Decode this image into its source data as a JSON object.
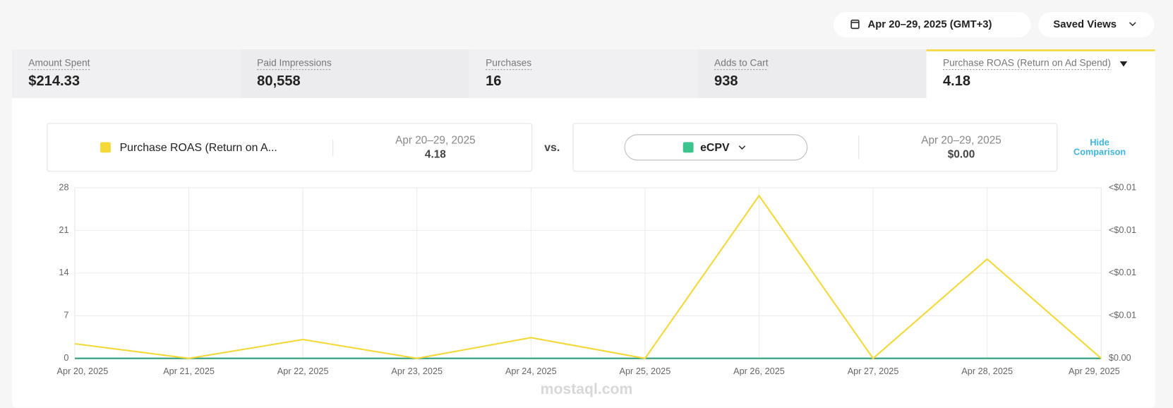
{
  "header": {
    "date_range": "Apr 20–29, 2025 (GMT+3)",
    "saved_views": "Saved Views"
  },
  "metrics": [
    {
      "label": "Amount Spent",
      "value": "$214.33"
    },
    {
      "label": "Paid Impressions",
      "value": "80,558"
    },
    {
      "label": "Purchases",
      "value": "16"
    },
    {
      "label": "Adds to Cart",
      "value": "938"
    },
    {
      "label": "Purchase ROAS (Return on Ad Spend)",
      "value": "4.18"
    }
  ],
  "comparison": {
    "primary": {
      "label": "Purchase ROAS (Return on A...",
      "date": "Apr 20–29, 2025",
      "value": "4.18"
    },
    "vs": "vs.",
    "secondary": {
      "label": "eCPV",
      "date": "Apr 20–29, 2025",
      "value": "$0.00"
    },
    "hide": [
      "Hide",
      "Comparison"
    ]
  },
  "chart_data": {
    "type": "line",
    "categories": [
      "Apr 20, 2025",
      "Apr 21, 2025",
      "Apr 22, 2025",
      "Apr 23, 2025",
      "Apr 24, 2025",
      "Apr 25, 2025",
      "Apr 26, 2025",
      "Apr 27, 2025",
      "Apr 28, 2025",
      "Apr 29, 2025"
    ],
    "series": [
      {
        "name": "Purchase ROAS (Return on A...",
        "color": "#f5d93a",
        "values": [
          2.4,
          0,
          3.1,
          0,
          3.4,
          0,
          26.7,
          0,
          16.3,
          0
        ]
      },
      {
        "name": "eCPV",
        "color": "#2e9e7a",
        "axis": "y2",
        "values": [
          0,
          0,
          0,
          0,
          0,
          0,
          0,
          0,
          0,
          0
        ]
      }
    ],
    "ylim": [
      0,
      28
    ],
    "yticks": [
      0,
      7,
      14,
      21,
      28
    ],
    "y2lim": [
      0,
      0.008
    ],
    "y2ticks": [
      {
        "value": 0,
        "label": "$0.00"
      },
      {
        "value": 0.002,
        "label": "<$0.01"
      },
      {
        "value": 0.004,
        "label": "<$0.01"
      },
      {
        "value": 0.006,
        "label": "<$0.01"
      },
      {
        "value": 0.008,
        "label": "<$0.01"
      }
    ],
    "grid": true
  },
  "watermark": "mostaql.com"
}
